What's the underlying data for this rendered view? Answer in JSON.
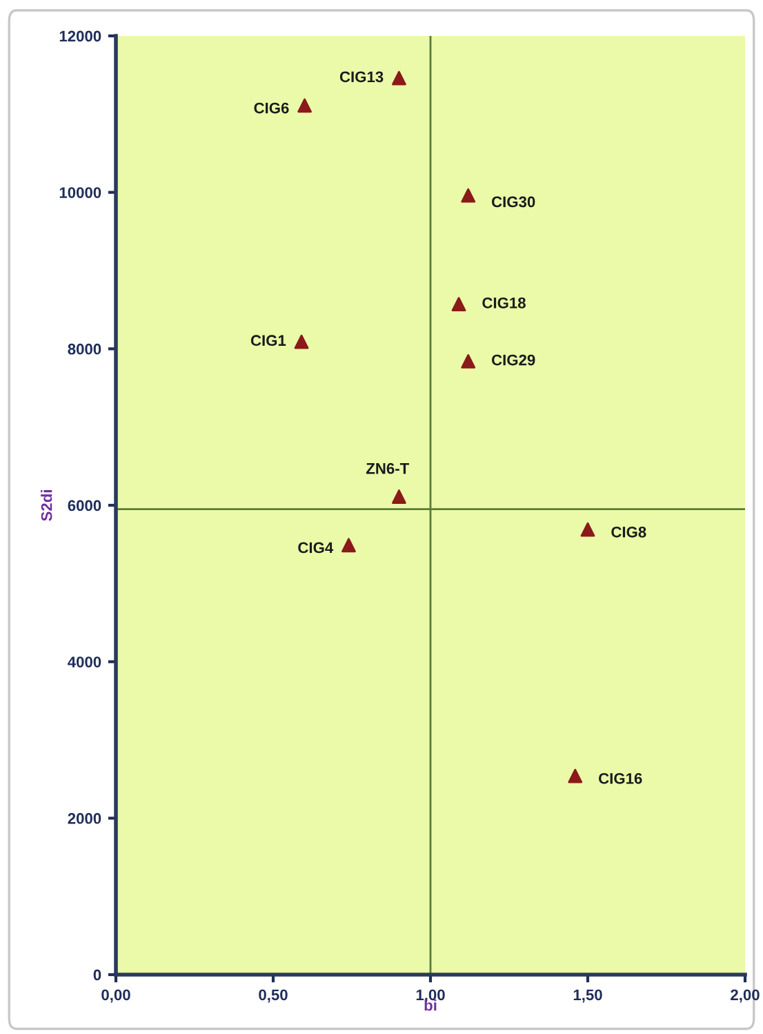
{
  "chart_data": {
    "type": "scatter",
    "xlabel": "bi",
    "ylabel": "S2di",
    "x": [
      0.9,
      0.6,
      1.12,
      1.09,
      0.59,
      1.12,
      0.9,
      0.74,
      1.5,
      1.46
    ],
    "values": [
      11460,
      11110,
      9960,
      8570,
      8090,
      7840,
      6110,
      5490,
      5690,
      2540
    ],
    "color": "#8b1a1a",
    "marker": "triangle",
    "annotations": [
      {
        "text": "CIG13",
        "x": 0.9,
        "y": 11460
      },
      {
        "text": "CIG6",
        "x": 0.6,
        "y": 11110
      },
      {
        "text": "CIG30",
        "x": 1.12,
        "y": 9960
      },
      {
        "text": "CIG18",
        "x": 1.09,
        "y": 8570
      },
      {
        "text": "CIG1",
        "x": 0.59,
        "y": 8090
      },
      {
        "text": "CIG29",
        "x": 1.12,
        "y": 7840
      },
      {
        "text": "ZN6-T",
        "x": 0.9,
        "y": 6110
      },
      {
        "text": "CIG4",
        "x": 0.74,
        "y": 5490
      },
      {
        "text": "CIG8",
        "x": 1.5,
        "y": 5690
      },
      {
        "text": "CIG16",
        "x": 1.46,
        "y": 2540
      }
    ],
    "ref_lines": [
      {
        "axis": "x",
        "value": 1.0,
        "color": "#5a7a3a"
      },
      {
        "axis": "y",
        "value": 5950,
        "color": "#5a7a3a"
      }
    ],
    "xlim": [
      0,
      2
    ],
    "ylim": [
      0,
      12000
    ],
    "xticks": [
      {
        "value": 0,
        "label": "0,00"
      },
      {
        "value": 0.5,
        "label": "0,50"
      },
      {
        "value": 1.0,
        "label": "1,00"
      },
      {
        "value": 1.5,
        "label": "1,50"
      },
      {
        "value": 2.0,
        "label": "2,00"
      }
    ],
    "yticks": [
      0,
      2000,
      4000,
      6000,
      8000,
      10000,
      12000
    ],
    "grid": false,
    "legend": false
  }
}
